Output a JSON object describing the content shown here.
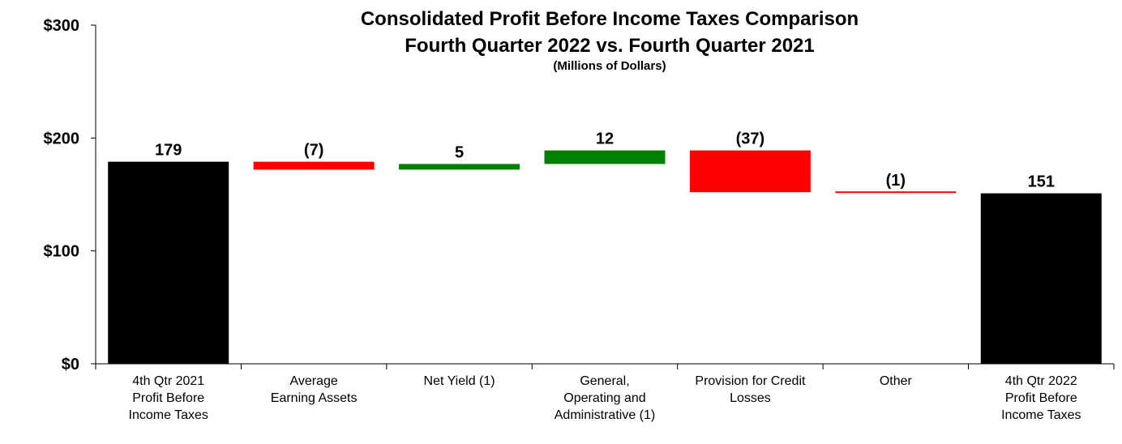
{
  "chart_data": {
    "type": "bar",
    "subtype": "waterfall",
    "title": "Consolidated Profit Before Income Taxes Comparison",
    "subtitle": "Fourth Quarter 2022 vs. Fourth Quarter 2021",
    "units_note": "(Millions of Dollars)",
    "xlabel": "",
    "ylabel": "",
    "ylim": [
      0,
      300
    ],
    "yticks": [
      0,
      100,
      200,
      300
    ],
    "ytick_labels": [
      "$0",
      "$100",
      "$200",
      "$300"
    ],
    "categories": [
      [
        "4th Qtr 2021",
        "Profit Before",
        "Income Taxes"
      ],
      [
        "Average",
        "Earning Assets"
      ],
      [
        "Net Yield (1)"
      ],
      [
        "General,",
        "Operating and",
        "Administrative (1)"
      ],
      [
        "Provision for Credit",
        "Losses"
      ],
      [
        "Other"
      ],
      [
        "4th Qtr 2022",
        "Profit Before",
        "Income Taxes"
      ]
    ],
    "bars": [
      {
        "kind": "total",
        "base": 0,
        "top": 179,
        "label": "179",
        "color": "#000000"
      },
      {
        "kind": "decrease",
        "base": 172,
        "top": 179,
        "label": "(7)",
        "color": "#ff0000"
      },
      {
        "kind": "increase",
        "base": 172,
        "top": 177,
        "label": "5",
        "color": "#008000"
      },
      {
        "kind": "increase",
        "base": 177,
        "top": 189,
        "label": "12",
        "color": "#008000"
      },
      {
        "kind": "decrease",
        "base": 152,
        "top": 189,
        "label": "(37)",
        "color": "#ff0000"
      },
      {
        "kind": "decrease",
        "base": 151,
        "top": 152,
        "label": "(1)",
        "color": "#ff0000"
      },
      {
        "kind": "total",
        "base": 0,
        "top": 151,
        "label": "151",
        "color": "#000000"
      }
    ],
    "grid": false,
    "legend": "none"
  }
}
